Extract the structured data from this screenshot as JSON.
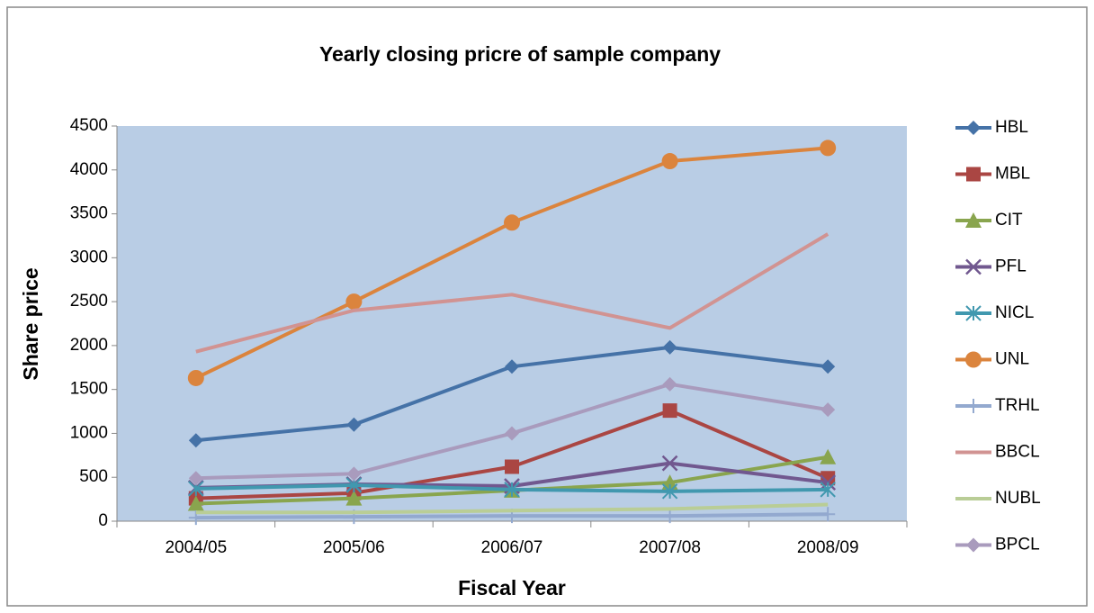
{
  "chart_data": {
    "type": "line",
    "title": "Yearly closing pricre of sample company",
    "x_label": "Fiscal Year",
    "y_label": "Share price",
    "categories": [
      "2004/05",
      "2005/06",
      "2006/07",
      "2007/08",
      "2008/09"
    ],
    "ylim": [
      0,
      4500
    ],
    "yticks": [
      0,
      500,
      1000,
      1500,
      2000,
      2500,
      3000,
      3500,
      4000,
      4500
    ],
    "legend": "right",
    "series": [
      {
        "name": "HBL",
        "color": "#4572a7",
        "marker": "diamond",
        "values": [
          920,
          1100,
          1760,
          1980,
          1760
        ]
      },
      {
        "name": "MBL",
        "color": "#aa4643",
        "marker": "square",
        "values": [
          260,
          320,
          620,
          1260,
          490
        ]
      },
      {
        "name": "CIT",
        "color": "#89a54e",
        "marker": "triangle",
        "values": [
          200,
          260,
          350,
          440,
          730
        ]
      },
      {
        "name": "PFL",
        "color": "#71588f",
        "marker": "x",
        "values": [
          380,
          420,
          400,
          660,
          440
        ]
      },
      {
        "name": "NICL",
        "color": "#4198af",
        "marker": "star",
        "values": [
          370,
          410,
          360,
          340,
          360
        ]
      },
      {
        "name": "UNL",
        "color": "#db843d",
        "marker": "circle",
        "values": [
          1630,
          2500,
          3400,
          4100,
          4250
        ]
      },
      {
        "name": "TRHL",
        "color": "#93a9cf",
        "marker": "plus",
        "values": [
          40,
          50,
          60,
          60,
          80
        ]
      },
      {
        "name": "BBCL",
        "color": "#d19392",
        "marker": "none",
        "values": [
          1930,
          2400,
          2580,
          2200,
          3270
        ]
      },
      {
        "name": "NUBL",
        "color": "#b9cd96",
        "marker": "none",
        "values": [
          100,
          100,
          120,
          140,
          190
        ]
      },
      {
        "name": "BPCL",
        "color": "#a99bbd",
        "marker": "diamond",
        "values": [
          490,
          540,
          1000,
          1560,
          1270
        ]
      }
    ]
  }
}
